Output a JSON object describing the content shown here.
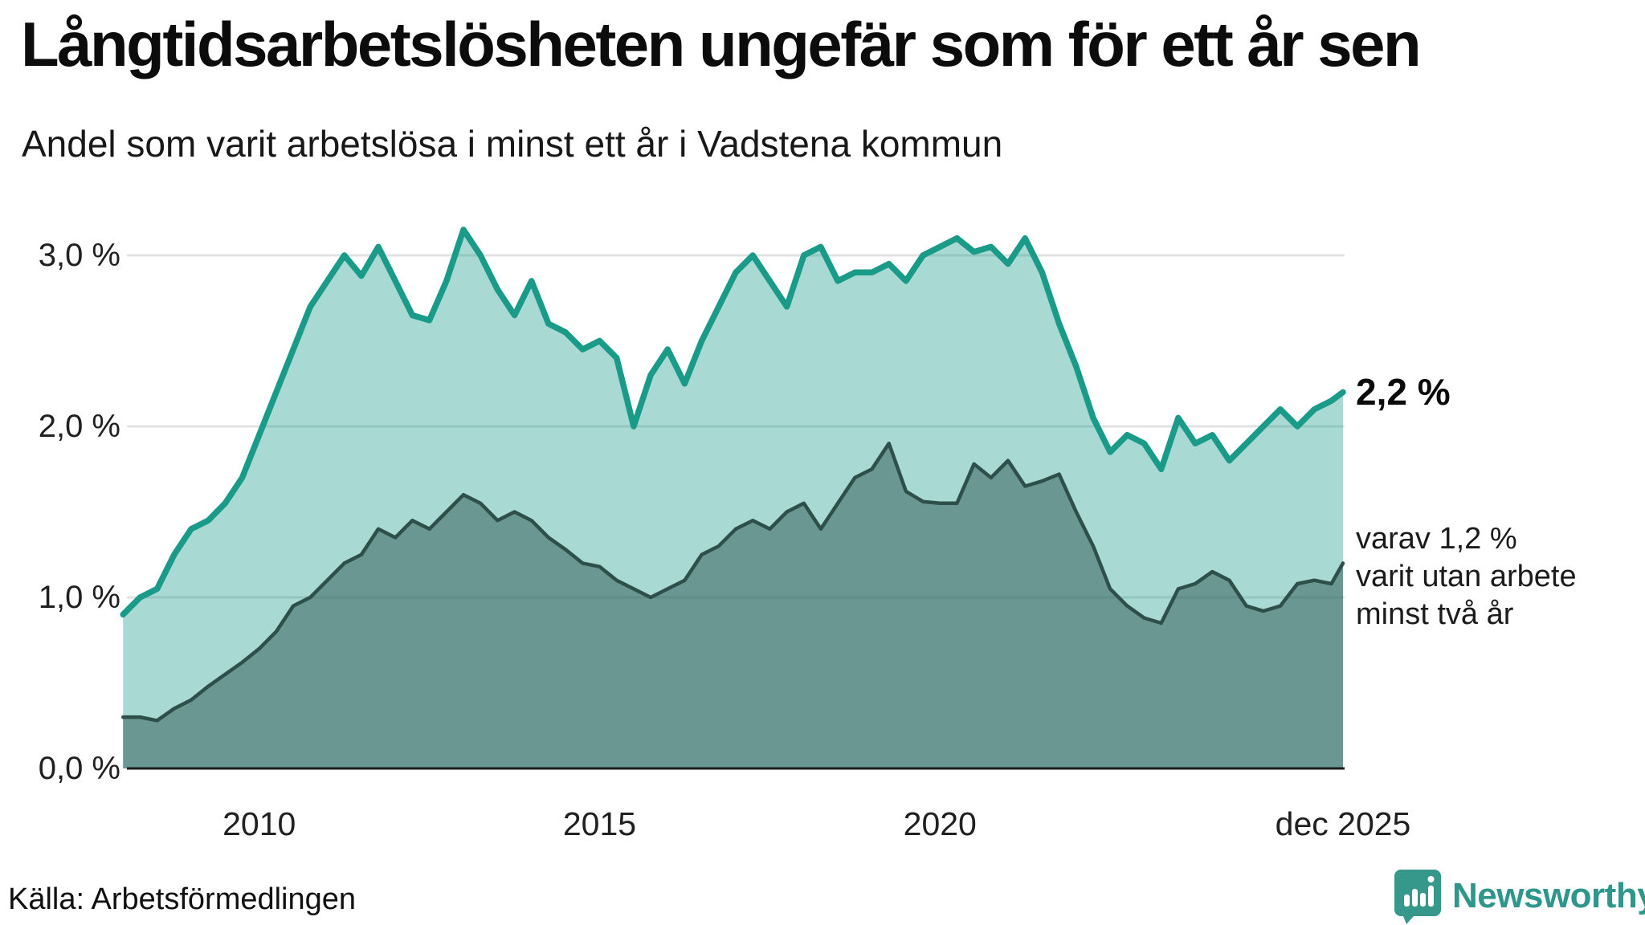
{
  "header": {
    "title": "Långtidsarbetslösheten ungefär som för ett år sen",
    "subtitle": "Andel som varit arbetslösa i minst ett år i Vadstena kommun"
  },
  "annotation": {
    "end_value_label": "2,2 %",
    "secondary_lines": [
      "varav 1,2 %",
      "varit utan arbete",
      "minst två år"
    ]
  },
  "footer": {
    "source": "Källa: Arbetsförmedlingen",
    "brand": "Newsworthy"
  },
  "colors": {
    "accent_teal_line": "#1a9b8a",
    "teal_fill": "rgba(26,155,139,0.38)",
    "dark_line": "#2f4f4a",
    "dark_fill": "rgba(31,70,64,0.45)",
    "gridline": "#e0e3e2",
    "axis": "#1a1f1e",
    "brand_teal": "#2e968a",
    "text": "#0c0c0c"
  },
  "icons": {
    "logo_mark": "speech-bubble-bar-chart-icon"
  },
  "chart_data": {
    "type": "area",
    "title": "Långtidsarbetslösheten ungefär som för ett år sen",
    "subtitle": "Andel som varit arbetslösa i minst ett år i Vadstena kommun",
    "source": "Källa: Arbetsförmedlingen",
    "x_unit": "decimal year, monthly share of workforce in Vadstena kommun (%)",
    "xlim": [
      2008.08,
      2025.92
    ],
    "ylim": [
      0,
      3.3
    ],
    "grid": "horizontal",
    "legend_position": "right-annotations",
    "yticks": [
      {
        "value": 0,
        "label": "0,0 %"
      },
      {
        "value": 1,
        "label": "1,0 %"
      },
      {
        "value": 2,
        "label": "2,0 %"
      },
      {
        "value": 3,
        "label": "3,0 %"
      }
    ],
    "xticks": [
      {
        "value": 2010,
        "label": "2010"
      },
      {
        "value": 2015,
        "label": "2015"
      },
      {
        "value": 2020,
        "label": "2020"
      },
      {
        "value": 2025.92,
        "label": "dec 2025"
      }
    ],
    "x": [
      2008.0,
      2008.25,
      2008.5,
      2008.75,
      2009.0,
      2009.25,
      2009.5,
      2009.75,
      2010.0,
      2010.25,
      2010.5,
      2010.75,
      2011.0,
      2011.25,
      2011.5,
      2011.75,
      2012.0,
      2012.25,
      2012.5,
      2012.75,
      2013.0,
      2013.25,
      2013.5,
      2013.75,
      2014.0,
      2014.25,
      2014.5,
      2014.75,
      2015.0,
      2015.25,
      2015.5,
      2015.75,
      2016.0,
      2016.25,
      2016.5,
      2016.75,
      2017.0,
      2017.25,
      2017.5,
      2017.75,
      2018.0,
      2018.25,
      2018.5,
      2018.75,
      2019.0,
      2019.25,
      2019.5,
      2019.75,
      2020.0,
      2020.25,
      2020.5,
      2020.75,
      2021.0,
      2021.25,
      2021.5,
      2021.75,
      2022.0,
      2022.25,
      2022.5,
      2022.75,
      2023.0,
      2023.25,
      2023.5,
      2023.75,
      2024.0,
      2024.25,
      2024.5,
      2024.75,
      2025.0,
      2025.25,
      2025.5,
      2025.75,
      2025.92
    ],
    "series": [
      {
        "name": "Andel arbetslösa minst ett år",
        "end_value": 2.2,
        "end_label": "2,2 %",
        "line_color": "#1a9b8a",
        "fill_color": "rgba(26,155,139,0.38)",
        "values": [
          0.9,
          1.0,
          1.05,
          1.25,
          1.4,
          1.45,
          1.55,
          1.7,
          1.95,
          2.2,
          2.45,
          2.7,
          2.85,
          3.0,
          2.88,
          3.05,
          2.85,
          2.65,
          2.62,
          2.85,
          3.15,
          3.0,
          2.8,
          2.65,
          2.85,
          2.6,
          2.55,
          2.45,
          2.5,
          2.4,
          2.0,
          2.3,
          2.45,
          2.25,
          2.5,
          2.7,
          2.9,
          3.0,
          2.85,
          2.7,
          3.0,
          3.05,
          2.85,
          2.9,
          2.9,
          2.95,
          2.85,
          3.0,
          3.05,
          3.1,
          3.02,
          3.05,
          2.95,
          3.1,
          2.9,
          2.6,
          2.35,
          2.05,
          1.85,
          1.95,
          1.9,
          1.75,
          2.05,
          1.9,
          1.95,
          1.8,
          1.9,
          2.0,
          2.1,
          2.0,
          2.1,
          2.15,
          2.2
        ]
      },
      {
        "name": "varav utan arbete minst två år",
        "end_value": 1.2,
        "end_label": "varav 1,2 % varit utan arbete minst två år",
        "line_color": "#2f4f4a",
        "fill_color": "rgba(31,70,64,0.45)",
        "values": [
          0.3,
          0.3,
          0.28,
          0.35,
          0.4,
          0.48,
          0.55,
          0.62,
          0.7,
          0.8,
          0.95,
          1.0,
          1.1,
          1.2,
          1.25,
          1.4,
          1.35,
          1.45,
          1.4,
          1.5,
          1.6,
          1.55,
          1.45,
          1.5,
          1.45,
          1.35,
          1.28,
          1.2,
          1.18,
          1.1,
          1.05,
          1.0,
          1.05,
          1.1,
          1.25,
          1.3,
          1.4,
          1.45,
          1.4,
          1.5,
          1.55,
          1.4,
          1.55,
          1.7,
          1.75,
          1.9,
          1.62,
          1.56,
          1.55,
          1.55,
          1.78,
          1.7,
          1.8,
          1.65,
          1.68,
          1.72,
          1.5,
          1.3,
          1.05,
          0.95,
          0.88,
          0.85,
          1.05,
          1.08,
          1.15,
          1.1,
          0.95,
          0.92,
          0.95,
          1.08,
          1.1,
          1.08,
          1.2
        ]
      }
    ]
  }
}
